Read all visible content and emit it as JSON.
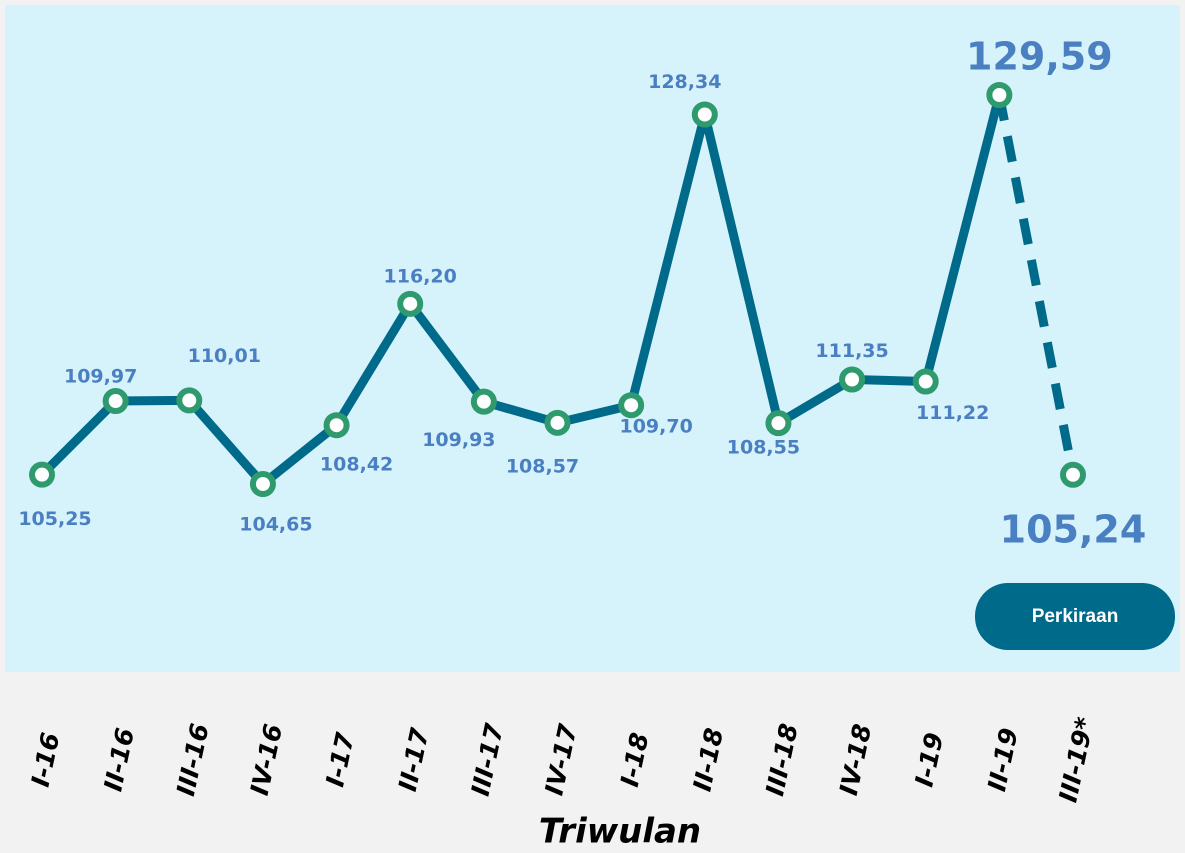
{
  "chart_data": {
    "type": "line",
    "categories": [
      "I-16",
      "II-16",
      "III-16",
      "IV-16",
      "I-17",
      "II-17",
      "III-17",
      "IV-17",
      "I-18",
      "II-18",
      "III-18",
      "IV-18",
      "I-19",
      "II-19",
      "III-19*"
    ],
    "values": [
      105.25,
      109.97,
      110.01,
      104.65,
      108.42,
      116.2,
      109.93,
      108.57,
      109.7,
      128.34,
      108.55,
      111.35,
      111.22,
      129.59,
      105.24
    ],
    "value_labels": [
      "105,25",
      "109,97",
      "110,01",
      "104,65",
      "108,42",
      "116,20",
      "109,93",
      "108,57",
      "109,70",
      "128,34",
      "108,55",
      "111,35",
      "111,22",
      "129,59",
      "105,24"
    ],
    "color": "#006a8a",
    "marker_color": "#2e9a6e",
    "label_color": "#4a7fc1",
    "xlabel": "Triwulan",
    "annotation": "Perkiraan"
  }
}
